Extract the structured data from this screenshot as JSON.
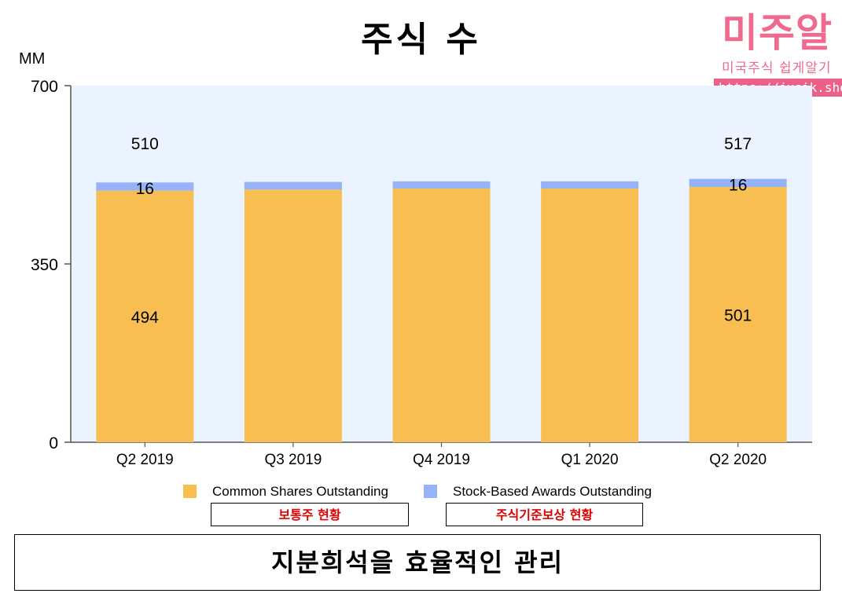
{
  "header": {
    "title": "주식 수",
    "unit": "MM"
  },
  "logo": {
    "name": "미주알",
    "tagline": "미국주식 쉽게알기",
    "url": "https://jusik.shop"
  },
  "chart_data": {
    "type": "bar",
    "stacked": true,
    "categories": [
      "Q2 2019",
      "Q3 2019",
      "Q4 2019",
      "Q1 2020",
      "Q2 2020"
    ],
    "series": [
      {
        "name": "Common Shares Outstanding",
        "color": "#f9be52",
        "values": [
          494,
          496,
          498,
          498,
          501
        ]
      },
      {
        "name": "Stock-Based Awards Outstanding",
        "color": "#97b3f7",
        "values": [
          16,
          15,
          14,
          14,
          16
        ]
      }
    ],
    "totals": [
      "510",
      "",
      "",
      "",
      "517"
    ],
    "segment_labels": {
      "Common Shares Outstanding": [
        "494",
        "",
        "",
        "",
        "501"
      ],
      "Stock-Based Awards Outstanding": [
        "16",
        "",
        "",
        "",
        "16"
      ]
    },
    "ylim": [
      0,
      700
    ],
    "yticks": [
      "0",
      "350",
      "700"
    ],
    "grid": false,
    "plot_background": "#eaf3ff",
    "legend_position": "bottom"
  },
  "legend_annotations": [
    "보통주 현황",
    "주식기준보상 현황"
  ],
  "footer_text": "지분희석을 효율적인 관리"
}
